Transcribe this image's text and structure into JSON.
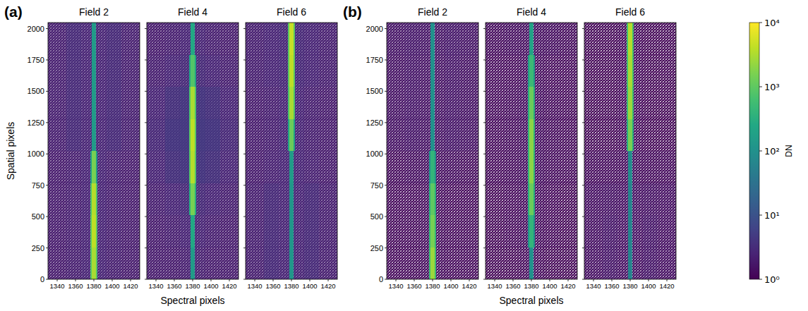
{
  "chart_data": [
    {
      "type": "heatmap",
      "panel_label": "(a)",
      "title": "Field 2",
      "ylabel": "Spatial pixels",
      "xlim": [
        1330,
        1430
      ],
      "xticks": [
        1340,
        1360,
        1380,
        1400,
        1420
      ],
      "ylim": [
        0,
        2048
      ],
      "yticks": [
        0,
        250,
        500,
        750,
        1000,
        1250,
        1500,
        1750,
        2000
      ],
      "x_edges": [
        1330,
        1350,
        1366,
        1376,
        1378,
        1382,
        1384,
        1394,
        1410,
        1430
      ],
      "y_edges": [
        0,
        256,
        512,
        768,
        1024,
        1280,
        1536,
        1792,
        2048
      ],
      "cells": [
        [
          2,
          2.2,
          2.5,
          800,
          3000,
          800,
          2.5,
          2.2,
          2
        ],
        [
          2,
          2.2,
          2.5,
          900,
          4000,
          900,
          2.5,
          2.2,
          2
        ],
        [
          2,
          2.2,
          2.5,
          700,
          3500,
          700,
          2.5,
          2.2,
          2
        ],
        [
          2,
          2.2,
          2.5,
          150,
          1500,
          150,
          2.5,
          2.2,
          2
        ],
        [
          2.2,
          3,
          2.5,
          3,
          150,
          3,
          2.5,
          3,
          2.2
        ],
        [
          2.2,
          3,
          2.5,
          3,
          150,
          3,
          2.5,
          3,
          2.2
        ],
        [
          2.2,
          3,
          2.5,
          3,
          150,
          3,
          2.5,
          3,
          2.2
        ],
        [
          2.2,
          3,
          2.5,
          3,
          150,
          3,
          2.5,
          3,
          2.2
        ]
      ]
    },
    {
      "type": "heatmap",
      "title": "Field 4",
      "xlabel": "Spectral pixels",
      "tick_labels": "x",
      "xlim": [
        1330,
        1430
      ],
      "xticks": [
        1340,
        1360,
        1380,
        1400,
        1420
      ],
      "ylim": [
        0,
        2048
      ],
      "yticks": [
        0,
        250,
        500,
        750,
        1000,
        1250,
        1500,
        1750,
        2000
      ],
      "x_edges": [
        1330,
        1350,
        1366,
        1376,
        1378,
        1382,
        1384,
        1394,
        1410,
        1430
      ],
      "y_edges": [
        0,
        256,
        512,
        768,
        1024,
        1280,
        1536,
        1792,
        2048
      ],
      "cells": [
        [
          2,
          2,
          2.2,
          3,
          150,
          3,
          2.2,
          2,
          2
        ],
        [
          2,
          2.2,
          2.5,
          3,
          250,
          3,
          2.5,
          2.2,
          2
        ],
        [
          2.2,
          2.6,
          3,
          300,
          1500,
          300,
          3,
          2.6,
          2.2
        ],
        [
          2.5,
          3.5,
          4,
          800,
          3500,
          800,
          4,
          3.5,
          2.5
        ],
        [
          2.8,
          4,
          4.5,
          900,
          4000,
          900,
          4.5,
          4,
          2.8
        ],
        [
          2.5,
          3.5,
          4,
          700,
          3000,
          700,
          4,
          3.5,
          2.5
        ],
        [
          2.2,
          2.6,
          3,
          200,
          800,
          200,
          3,
          2.6,
          2.2
        ],
        [
          2,
          2.2,
          2.5,
          3,
          250,
          3,
          2.5,
          2.2,
          2
        ]
      ]
    },
    {
      "type": "heatmap",
      "title": "Field 6",
      "tick_labels": "x",
      "xlim": [
        1330,
        1430
      ],
      "xticks": [
        1340,
        1360,
        1380,
        1400,
        1420
      ],
      "ylim": [
        0,
        2048
      ],
      "yticks": [
        0,
        250,
        500,
        750,
        1000,
        1250,
        1500,
        1750,
        2000
      ],
      "x_edges": [
        1330,
        1350,
        1366,
        1376,
        1378,
        1382,
        1384,
        1394,
        1410,
        1430
      ],
      "y_edges": [
        0,
        256,
        512,
        768,
        1024,
        1280,
        1536,
        1792,
        2048
      ],
      "cells": [
        [
          2.2,
          3,
          2.5,
          3,
          120,
          3,
          2.5,
          3,
          2.2
        ],
        [
          2.2,
          3,
          2.5,
          3,
          120,
          3,
          2.5,
          3,
          2.2
        ],
        [
          2.2,
          3,
          2.5,
          3,
          120,
          3,
          2.5,
          3,
          2.2
        ],
        [
          2,
          2.3,
          2.5,
          3,
          150,
          3,
          2.5,
          2.3,
          2
        ],
        [
          2,
          2.2,
          2.5,
          200,
          1200,
          200,
          2.5,
          2.2,
          2
        ],
        [
          2,
          2.2,
          2.5,
          700,
          3000,
          700,
          2.5,
          2.2,
          2
        ],
        [
          2.2,
          2.5,
          2.8,
          900,
          4000,
          900,
          2.8,
          2.5,
          2.2
        ],
        [
          2.2,
          2.5,
          2.8,
          900,
          4500,
          900,
          2.8,
          2.5,
          2.2
        ]
      ]
    },
    {
      "type": "heatmap",
      "panel_label": "(b)",
      "title": "Field 2",
      "xlim": [
        1330,
        1430
      ],
      "xticks": [
        1340,
        1360,
        1380,
        1400,
        1420
      ],
      "ylim": [
        0,
        2048
      ],
      "yticks": [
        0,
        250,
        500,
        750,
        1000,
        1250,
        1500,
        1750,
        2000
      ],
      "x_edges": [
        1330,
        1350,
        1366,
        1376,
        1378,
        1382,
        1384,
        1394,
        1410,
        1430
      ],
      "y_edges": [
        0,
        256,
        512,
        768,
        1024,
        1280,
        1536,
        1792,
        2048
      ],
      "cells": [
        [
          1.2,
          1.2,
          1.3,
          500,
          2500,
          500,
          1.3,
          1.2,
          1.2
        ],
        [
          1.2,
          1.2,
          1.3,
          400,
          1500,
          400,
          1.3,
          1.2,
          1.2
        ],
        [
          1.2,
          1.2,
          1.3,
          300,
          1000,
          300,
          1.3,
          1.2,
          1.2
        ],
        [
          1.3,
          1.4,
          1.4,
          100,
          400,
          100,
          1.4,
          1.4,
          1.3
        ],
        [
          1.6,
          1.8,
          1.6,
          1.6,
          100,
          1.6,
          1.6,
          1.8,
          1.6
        ],
        [
          1.6,
          1.8,
          1.6,
          1.6,
          100,
          1.6,
          1.6,
          1.8,
          1.6
        ],
        [
          1.6,
          1.8,
          1.6,
          1.6,
          100,
          1.6,
          1.6,
          1.8,
          1.6
        ],
        [
          1.7,
          1.9,
          1.7,
          1.6,
          100,
          1.6,
          1.7,
          1.9,
          1.7
        ]
      ]
    },
    {
      "type": "heatmap",
      "title": "Field 4",
      "xlabel": "Spectral pixels",
      "tick_labels": "x",
      "xlim": [
        1330,
        1430
      ],
      "xticks": [
        1340,
        1360,
        1380,
        1400,
        1420
      ],
      "ylim": [
        0,
        2048
      ],
      "yticks": [
        0,
        250,
        500,
        750,
        1000,
        1250,
        1500,
        1750,
        2000
      ],
      "x_edges": [
        1330,
        1350,
        1366,
        1376,
        1378,
        1382,
        1384,
        1394,
        1410,
        1430
      ],
      "y_edges": [
        0,
        256,
        512,
        768,
        1024,
        1280,
        1536,
        1792,
        2048
      ],
      "cells": [
        [
          1.1,
          1.1,
          1.2,
          1.6,
          100,
          1.6,
          1.2,
          1.1,
          1.1
        ],
        [
          1.1,
          1.2,
          1.3,
          100,
          400,
          100,
          1.3,
          1.2,
          1.1
        ],
        [
          1.1,
          1.2,
          1.3,
          300,
          1200,
          300,
          1.3,
          1.2,
          1.1
        ],
        [
          1.2,
          1.3,
          1.4,
          400,
          2000,
          400,
          1.4,
          1.3,
          1.2
        ],
        [
          1.2,
          1.3,
          1.4,
          400,
          2000,
          400,
          1.4,
          1.3,
          1.2
        ],
        [
          1.2,
          1.3,
          1.4,
          300,
          1200,
          300,
          1.4,
          1.3,
          1.2
        ],
        [
          1.2,
          1.2,
          1.3,
          150,
          500,
          150,
          1.3,
          1.2,
          1.2
        ],
        [
          1.3,
          1.4,
          1.4,
          1.6,
          200,
          1.6,
          1.4,
          1.4,
          1.3
        ]
      ]
    },
    {
      "type": "heatmap",
      "title": "Field 6",
      "tick_labels": "x",
      "xlim": [
        1330,
        1430
      ],
      "xticks": [
        1340,
        1360,
        1380,
        1400,
        1420
      ],
      "ylim": [
        0,
        2048
      ],
      "yticks": [
        0,
        250,
        500,
        750,
        1000,
        1250,
        1500,
        1750,
        2000
      ],
      "x_edges": [
        1330,
        1350,
        1366,
        1376,
        1378,
        1382,
        1384,
        1394,
        1410,
        1430
      ],
      "y_edges": [
        0,
        256,
        512,
        768,
        1024,
        1280,
        1536,
        1792,
        2048
      ],
      "cells": [
        [
          1.5,
          1.8,
          1.5,
          1.6,
          60,
          1.6,
          1.5,
          1.8,
          1.5
        ],
        [
          1.5,
          1.8,
          1.5,
          1.6,
          60,
          1.6,
          1.5,
          1.8,
          1.5
        ],
        [
          1.5,
          1.6,
          1.5,
          1.6,
          60,
          1.6,
          1.5,
          1.6,
          1.5
        ],
        [
          1.3,
          1.3,
          1.3,
          1.6,
          80,
          1.6,
          1.3,
          1.3,
          1.3
        ],
        [
          1.1,
          1.1,
          1.2,
          300,
          1500,
          300,
          1.2,
          1.1,
          1.1
        ],
        [
          1.1,
          1.1,
          1.2,
          500,
          2500,
          500,
          1.2,
          1.1,
          1.1
        ],
        [
          1.1,
          1.1,
          1.2,
          600,
          3000,
          600,
          1.2,
          1.1,
          1.1
        ],
        [
          1.1,
          1.1,
          1.2,
          600,
          3500,
          600,
          1.2,
          1.1,
          1.1
        ]
      ]
    }
  ],
  "colorbar": {
    "label": "DN",
    "log": true,
    "lim": [
      1,
      10000
    ],
    "ticks": [
      {
        "value": 1,
        "label": "10⁰"
      },
      {
        "value": 10,
        "label": "10¹"
      },
      {
        "value": 100,
        "label": "10²"
      },
      {
        "value": 1000,
        "label": "10³"
      },
      {
        "value": 10000,
        "label": "10⁴"
      }
    ]
  }
}
